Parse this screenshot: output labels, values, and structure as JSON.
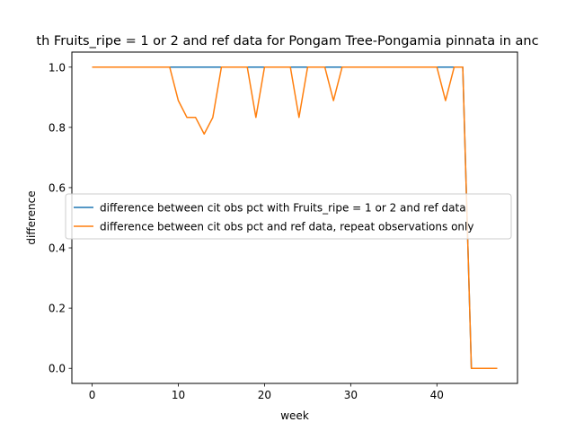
{
  "chart_data": {
    "type": "line",
    "title": "th Fruits_ripe = 1 or 2 and ref data for Pongam Tree-Pongamia pinnata in anc",
    "xlabel": "week",
    "ylabel": "difference",
    "xlim": [
      -2.35,
      49.35
    ],
    "ylim": [
      -0.05,
      1.05
    ],
    "xticks": [
      0,
      10,
      20,
      30,
      40
    ],
    "yticks": [
      0.0,
      0.2,
      0.4,
      0.6,
      0.8,
      1.0
    ],
    "xtick_labels": [
      "0",
      "10",
      "20",
      "30",
      "40"
    ],
    "ytick_labels": [
      "0.0",
      "0.2",
      "0.4",
      "0.6",
      "0.8",
      "1.0"
    ],
    "grid": false,
    "legend_position": "center",
    "series": [
      {
        "name": "difference between cit obs pct with Fruits_ripe = 1 or 2 and ref data",
        "color": "#1f77b4",
        "x": [
          0,
          1,
          2,
          3,
          4,
          5,
          6,
          7,
          8,
          9,
          10,
          11,
          12,
          13,
          14,
          15,
          16,
          17,
          18,
          19,
          20,
          21,
          22,
          23,
          24,
          25,
          26,
          27,
          28,
          29,
          30,
          31,
          32,
          33,
          34,
          35,
          36,
          37,
          38,
          39,
          40,
          41,
          42,
          43,
          44,
          45,
          46,
          47
        ],
        "values": [
          1,
          1,
          1,
          1,
          1,
          1,
          1,
          1,
          1,
          1,
          1,
          1,
          1,
          1,
          1,
          1,
          1,
          1,
          1,
          1,
          1,
          1,
          1,
          1,
          1,
          1,
          1,
          1,
          1,
          1,
          1,
          1,
          1,
          1,
          1,
          1,
          1,
          1,
          1,
          1,
          1,
          1,
          1,
          1,
          0,
          0,
          0,
          0
        ]
      },
      {
        "name": "difference between cit obs pct and ref data, repeat observations only",
        "color": "#ff7f0e",
        "x": [
          0,
          1,
          2,
          3,
          4,
          5,
          6,
          7,
          8,
          9,
          10,
          11,
          12,
          13,
          14,
          15,
          16,
          17,
          18,
          19,
          20,
          21,
          22,
          23,
          24,
          25,
          26,
          27,
          28,
          29,
          30,
          31,
          32,
          33,
          34,
          35,
          36,
          37,
          38,
          39,
          40,
          41,
          42,
          43,
          44,
          45,
          46,
          47
        ],
        "values": [
          1,
          1,
          1,
          1,
          1,
          1,
          1,
          1,
          1,
          1,
          0.889,
          0.833,
          0.833,
          0.778,
          0.833,
          1,
          1,
          1,
          1,
          0.833,
          1,
          1,
          1,
          1,
          0.833,
          1,
          1,
          1,
          0.889,
          1,
          1,
          1,
          1,
          1,
          1,
          1,
          1,
          1,
          1,
          1,
          1,
          0.889,
          1,
          1,
          0,
          0,
          0,
          0
        ]
      }
    ]
  }
}
